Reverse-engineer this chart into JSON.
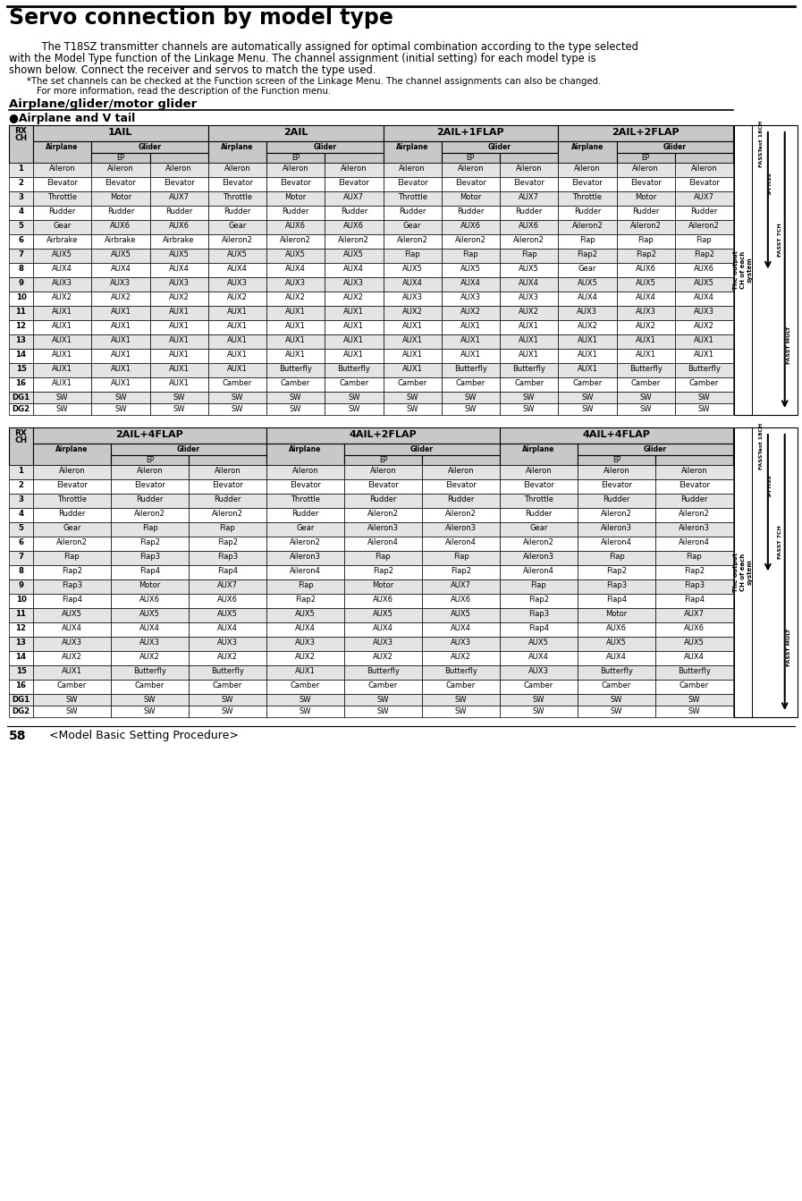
{
  "title": "Servo connection by model type",
  "body_lines": [
    "    The T18SZ transmitter channels are automatically assigned for optimal combination according to the type selected",
    "with the Model Type function of the Linkage Menu. The channel assignment (initial setting) for each model type is",
    "shown below. Connect the receiver and servos to match the type used."
  ],
  "note_lines": [
    "   *The set channels can be checked at the Function screen of the Linkage Menu. The channel assignments can also be changed.",
    "    For more information, read the description of the Function menu."
  ],
  "section_header": "Airplane/glider/motor glider",
  "bullet_header": "●Airplane and V tail",
  "table1_top_headers": [
    "1AIL",
    "2AIL",
    "2AIL+1FLAP",
    "2AIL+2FLAP"
  ],
  "table1_rows": [
    [
      "1",
      "Aileron",
      "Aileron",
      "Aileron",
      "Aileron",
      "Aileron",
      "Aileron",
      "Aileron",
      "Aileron",
      "Aileron",
      "Aileron",
      "Aileron",
      "Aileron"
    ],
    [
      "2",
      "Elevator",
      "Elevator",
      "Elevator",
      "Elevator",
      "Elevator",
      "Elevator",
      "Elevator",
      "Elevator",
      "Elevator",
      "Elevator",
      "Elevator",
      "Elevator"
    ],
    [
      "3",
      "Throttle",
      "Motor",
      "AUX7",
      "Throttle",
      "Motor",
      "AUX7",
      "Throttle",
      "Motor",
      "AUX7",
      "Throttle",
      "Motor",
      "AUX7"
    ],
    [
      "4",
      "Rudder",
      "Rudder",
      "Rudder",
      "Rudder",
      "Rudder",
      "Rudder",
      "Rudder",
      "Rudder",
      "Rudder",
      "Rudder",
      "Rudder",
      "Rudder"
    ],
    [
      "5",
      "Gear",
      "AUX6",
      "AUX6",
      "Gear",
      "AUX6",
      "AUX6",
      "Gear",
      "AUX6",
      "AUX6",
      "Aileron2",
      "Aileron2",
      "Aileron2"
    ],
    [
      "6",
      "Airbrake",
      "Airbrake",
      "Airbrake",
      "Aileron2",
      "Aileron2",
      "Aileron2",
      "Aileron2",
      "Aileron2",
      "Aileron2",
      "Flap",
      "Flap",
      "Flap"
    ],
    [
      "7",
      "AUX5",
      "AUX5",
      "AUX5",
      "AUX5",
      "AUX5",
      "AUX5",
      "Flap",
      "Flap",
      "Flap",
      "Flap2",
      "Flap2",
      "Flap2"
    ],
    [
      "8",
      "AUX4",
      "AUX4",
      "AUX4",
      "AUX4",
      "AUX4",
      "AUX4",
      "AUX5",
      "AUX5",
      "AUX5",
      "Gear",
      "AUX6",
      "AUX6"
    ],
    [
      "9",
      "AUX3",
      "AUX3",
      "AUX3",
      "AUX3",
      "AUX3",
      "AUX3",
      "AUX4",
      "AUX4",
      "AUX4",
      "AUX5",
      "AUX5",
      "AUX5"
    ],
    [
      "10",
      "AUX2",
      "AUX2",
      "AUX2",
      "AUX2",
      "AUX2",
      "AUX2",
      "AUX3",
      "AUX3",
      "AUX3",
      "AUX4",
      "AUX4",
      "AUX4"
    ],
    [
      "11",
      "AUX1",
      "AUX1",
      "AUX1",
      "AUX1",
      "AUX1",
      "AUX1",
      "AUX2",
      "AUX2",
      "AUX2",
      "AUX3",
      "AUX3",
      "AUX3"
    ],
    [
      "12",
      "AUX1",
      "AUX1",
      "AUX1",
      "AUX1",
      "AUX1",
      "AUX1",
      "AUX1",
      "AUX1",
      "AUX1",
      "AUX2",
      "AUX2",
      "AUX2"
    ],
    [
      "13",
      "AUX1",
      "AUX1",
      "AUX1",
      "AUX1",
      "AUX1",
      "AUX1",
      "AUX1",
      "AUX1",
      "AUX1",
      "AUX1",
      "AUX1",
      "AUX1"
    ],
    [
      "14",
      "AUX1",
      "AUX1",
      "AUX1",
      "AUX1",
      "AUX1",
      "AUX1",
      "AUX1",
      "AUX1",
      "AUX1",
      "AUX1",
      "AUX1",
      "AUX1"
    ],
    [
      "15",
      "AUX1",
      "AUX1",
      "AUX1",
      "AUX1",
      "Butterfly",
      "Butterfly",
      "AUX1",
      "Butterfly",
      "Butterfly",
      "AUX1",
      "Butterfly",
      "Butterfly"
    ],
    [
      "16",
      "AUX1",
      "AUX1",
      "AUX1",
      "Camber",
      "Camber",
      "Camber",
      "Camber",
      "Camber",
      "Camber",
      "Camber",
      "Camber",
      "Camber"
    ],
    [
      "DG1",
      "SW",
      "SW",
      "SW",
      "SW",
      "SW",
      "SW",
      "SW",
      "SW",
      "SW",
      "SW",
      "SW",
      "SW"
    ],
    [
      "DG2",
      "SW",
      "SW",
      "SW",
      "SW",
      "SW",
      "SW",
      "SW",
      "SW",
      "SW",
      "SW",
      "SW",
      "SW"
    ]
  ],
  "table2_top_headers": [
    "2AIL+4FLAP",
    "4AIL+2FLAP",
    "4AIL+4FLAP"
  ],
  "table2_rows": [
    [
      "1",
      "Aileron",
      "Aileron",
      "Aileron",
      "Aileron",
      "Aileron",
      "Aileron",
      "Aileron",
      "Aileron",
      "Aileron"
    ],
    [
      "2",
      "Elevator",
      "Elevator",
      "Elevator",
      "Elevator",
      "Elevator",
      "Elevator",
      "Elevator",
      "Elevator",
      "Elevator"
    ],
    [
      "3",
      "Throttle",
      "Rudder",
      "Rudder",
      "Throttle",
      "Rudder",
      "Rudder",
      "Throttle",
      "Rudder",
      "Rudder"
    ],
    [
      "4",
      "Rudder",
      "Aileron2",
      "Aileron2",
      "Rudder",
      "Aileron2",
      "Aileron2",
      "Rudder",
      "Aileron2",
      "Aileron2"
    ],
    [
      "5",
      "Gear",
      "Flap",
      "Flap",
      "Gear",
      "Aileron3",
      "Aileron3",
      "Gear",
      "Aileron3",
      "Aileron3"
    ],
    [
      "6",
      "Aileron2",
      "Flap2",
      "Flap2",
      "Aileron2",
      "Aileron4",
      "Aileron4",
      "Aileron2",
      "Aileron4",
      "Aileron4"
    ],
    [
      "7",
      "Flap",
      "Flap3",
      "Flap3",
      "Aileron3",
      "Flap",
      "Flap",
      "Aileron3",
      "Flap",
      "Flap"
    ],
    [
      "8",
      "Flap2",
      "Flap4",
      "Flap4",
      "Aileron4",
      "Flap2",
      "Flap2",
      "Aileron4",
      "Flap2",
      "Flap2"
    ],
    [
      "9",
      "Flap3",
      "Motor",
      "AUX7",
      "Flap",
      "Motor",
      "AUX7",
      "Flap",
      "Flap3",
      "Flap3"
    ],
    [
      "10",
      "Flap4",
      "AUX6",
      "AUX6",
      "Flap2",
      "AUX6",
      "AUX6",
      "Flap2",
      "Flap4",
      "Flap4"
    ],
    [
      "11",
      "AUX5",
      "AUX5",
      "AUX5",
      "AUX5",
      "AUX5",
      "AUX5",
      "Flap3",
      "Motor",
      "AUX7"
    ],
    [
      "12",
      "AUX4",
      "AUX4",
      "AUX4",
      "AUX4",
      "AUX4",
      "AUX4",
      "Flap4",
      "AUX6",
      "AUX6"
    ],
    [
      "13",
      "AUX3",
      "AUX3",
      "AUX3",
      "AUX3",
      "AUX3",
      "AUX3",
      "AUX5",
      "AUX5",
      "AUX5"
    ],
    [
      "14",
      "AUX2",
      "AUX2",
      "AUX2",
      "AUX2",
      "AUX2",
      "AUX2",
      "AUX4",
      "AUX4",
      "AUX4"
    ],
    [
      "15",
      "AUX1",
      "Butterfly",
      "Butterfly",
      "AUX1",
      "Butterfly",
      "Butterfly",
      "AUX3",
      "Butterfly",
      "Butterfly"
    ],
    [
      "16",
      "Camber",
      "Camber",
      "Camber",
      "Camber",
      "Camber",
      "Camber",
      "Camber",
      "Camber",
      "Camber"
    ],
    [
      "DG1",
      "SW",
      "SW",
      "SW",
      "SW",
      "SW",
      "SW",
      "SW",
      "SW",
      "SW"
    ],
    [
      "DG2",
      "SW",
      "SW",
      "SW",
      "SW",
      "SW",
      "SW",
      "SW",
      "SW",
      "SW"
    ]
  ],
  "bg_color": "#ffffff",
  "header_bg": "#c8c8c8",
  "alt_row_bg": "#e4e4e4",
  "white_row_bg": "#ffffff",
  "page_num": "58",
  "page_label": "<Model Basic Setting Procedure>"
}
